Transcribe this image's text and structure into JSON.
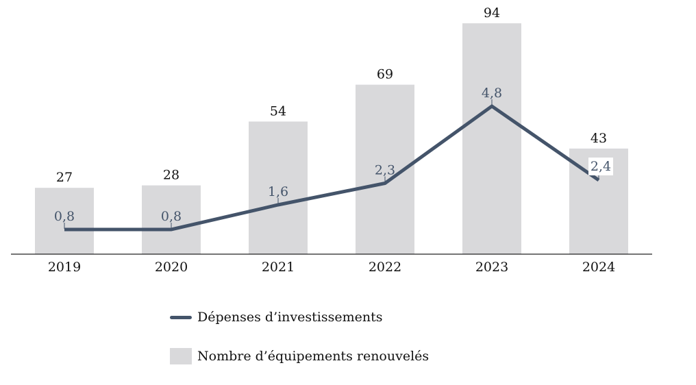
{
  "colors": {
    "bar": "#d9d9db",
    "line": "#44546a",
    "axis": "#222222",
    "text": "#111111"
  },
  "chart_data": {
    "type": "bar",
    "categories": [
      "2019",
      "2020",
      "2021",
      "2022",
      "2023",
      "2024"
    ],
    "series": [
      {
        "name": "Nombre d’équipements renouvelés",
        "type": "bar",
        "values": [
          27,
          28,
          54,
          69,
          94,
          43
        ],
        "labels": [
          "27",
          "28",
          "54",
          "69",
          "94",
          "43"
        ],
        "color": "#d9d9db"
      },
      {
        "name": "Dépenses d’investissements",
        "type": "line",
        "values": [
          0.8,
          0.8,
          1.6,
          2.3,
          4.8,
          2.4
        ],
        "labels": [
          "0,8",
          "0,8",
          "1,6",
          "2,3",
          "4,8",
          "2,4"
        ],
        "color": "#44546a"
      }
    ],
    "bar_ylim": [
      0,
      94
    ],
    "line_ylim": [
      0,
      4.8
    ],
    "title": "",
    "xlabel": "",
    "ylabel": "",
    "grid": false,
    "legend_position": "bottom"
  }
}
